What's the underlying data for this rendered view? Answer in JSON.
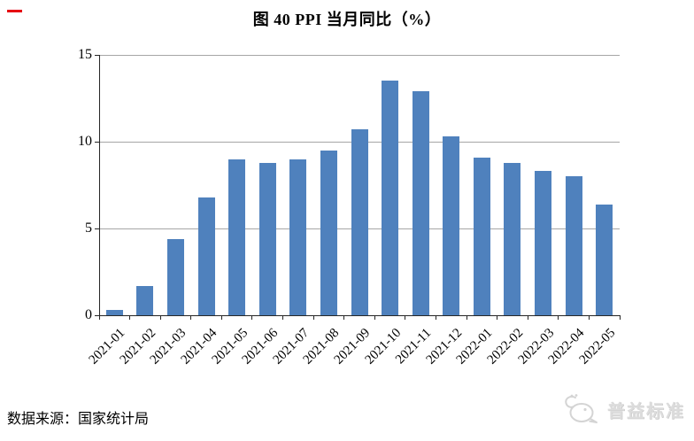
{
  "page": {
    "title": "图 40 PPI 当月同比（%）",
    "source": "数据来源：国家统计局",
    "brand": "普益标准",
    "accent_red": "#e60012"
  },
  "chart_data": {
    "type": "bar",
    "title": "图 40 PPI 当月同比（%）",
    "categories": [
      "2021-01",
      "2021-02",
      "2021-03",
      "2021-04",
      "2021-05",
      "2021-06",
      "2021-07",
      "2021-08",
      "2021-09",
      "2021-10",
      "2021-11",
      "2021-12",
      "2022-01",
      "2022-02",
      "2022-03",
      "2022-04",
      "2022-05"
    ],
    "values": [
      0.3,
      1.7,
      4.4,
      6.8,
      9.0,
      8.8,
      9.0,
      9.5,
      10.7,
      13.5,
      12.9,
      10.3,
      9.1,
      8.8,
      8.3,
      8.0,
      6.4
    ],
    "xlabel": "",
    "ylabel": "",
    "ylim": [
      0,
      15
    ],
    "yticks": [
      0,
      5,
      10,
      15
    ],
    "grid": true,
    "legend": "none",
    "bar_color": "#4f81bd",
    "gridline_color": "#a6a6a6",
    "axis_color": "#262626",
    "x_label_rotation_deg": -45
  }
}
